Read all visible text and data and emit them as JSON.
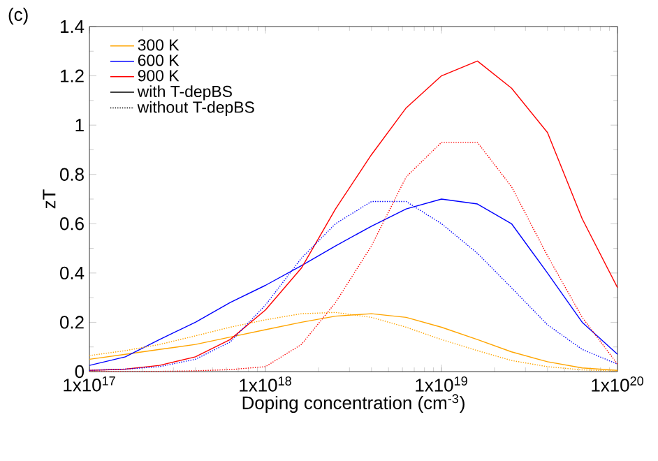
{
  "chart_data": {
    "type": "line",
    "xlabel": "Doping concentration (cm$^{-3}$)",
    "ylabel": "zT",
    "annotations": [
      "(c)"
    ],
    "log": "x",
    "legend": "top left",
    "marker": "none",
    "xlim": [
      1e+17,
      1e+20
    ],
    "xticks": [
      {
        "value": 1e+17,
        "label": "1x10$^{17}$"
      },
      {
        "value": 1e+18,
        "label": "1x10$^{18}$"
      },
      {
        "value": 1e+19,
        "label": "1x10$^{19}$"
      },
      {
        "value": 1e+20,
        "label": "1x10$^{20}$"
      }
    ],
    "ylim": [
      0,
      1.4
    ],
    "yticks": [
      0,
      0.2,
      0.4,
      0.6,
      0.8,
      1,
      1.2,
      1.4
    ],
    "x": [
      1e+17,
      1.6e+17,
      2.5e+17,
      4e+17,
      6.3e+17,
      1e+18,
      1.6e+18,
      2.5e+18,
      4e+18,
      6.3e+18,
      1e+19,
      1.6e+19,
      2.5e+19,
      4e+19,
      6.3e+19,
      1e+20
    ],
    "series": [
      {
        "name": "300 K",
        "color": "#ffa500",
        "line_style": "solid",
        "values": [
          0.05,
          0.07,
          0.09,
          0.11,
          0.14,
          0.17,
          0.2,
          0.225,
          0.235,
          0.22,
          0.18,
          0.13,
          0.08,
          0.04,
          0.015,
          0.005
        ]
      },
      {
        "name": "600 K",
        "color": "#0000ff",
        "line_style": "solid",
        "values": [
          0.025,
          0.06,
          0.13,
          0.2,
          0.28,
          0.35,
          0.43,
          0.51,
          0.59,
          0.66,
          0.7,
          0.68,
          0.6,
          0.4,
          0.2,
          0.07
        ]
      },
      {
        "name": "900 K",
        "color": "#ff0000",
        "line_style": "solid",
        "values": [
          0.005,
          0.01,
          0.025,
          0.06,
          0.13,
          0.25,
          0.42,
          0.66,
          0.88,
          1.07,
          1.2,
          1.26,
          1.15,
          0.97,
          0.62,
          0.34
        ]
      },
      {
        "name": "with T-depBS",
        "color": "#000000",
        "line_style": "solid",
        "values": [
          null,
          null,
          null,
          null,
          null,
          null,
          null,
          null,
          null,
          null,
          null,
          null,
          null,
          null,
          null,
          null
        ]
      },
      {
        "name": "without T-depBS",
        "color": "#000000",
        "line_style": "dotted",
        "values": [
          null,
          null,
          null,
          null,
          null,
          null,
          null,
          null,
          null,
          null,
          null,
          null,
          null,
          null,
          null,
          null
        ]
      },
      {
        "color": "#ffa500",
        "line_style": "dotted",
        "values": [
          0.065,
          0.085,
          0.11,
          0.145,
          0.18,
          0.21,
          0.235,
          0.24,
          0.22,
          0.18,
          0.13,
          0.085,
          0.045,
          0.02,
          0.007,
          0.002
        ]
      },
      {
        "color": "#0000ff",
        "line_style": "dotted",
        "values": [
          0.005,
          0.01,
          0.02,
          0.05,
          0.12,
          0.27,
          0.46,
          0.6,
          0.69,
          0.69,
          0.6,
          0.48,
          0.34,
          0.19,
          0.09,
          0.03
        ]
      },
      {
        "color": "#ff0000",
        "line_style": "dotted",
        "values": [
          0,
          0,
          0.001,
          0.003,
          0.008,
          0.02,
          0.11,
          0.28,
          0.51,
          0.79,
          0.93,
          0.93,
          0.75,
          0.47,
          0.22,
          0.03
        ]
      }
    ]
  }
}
